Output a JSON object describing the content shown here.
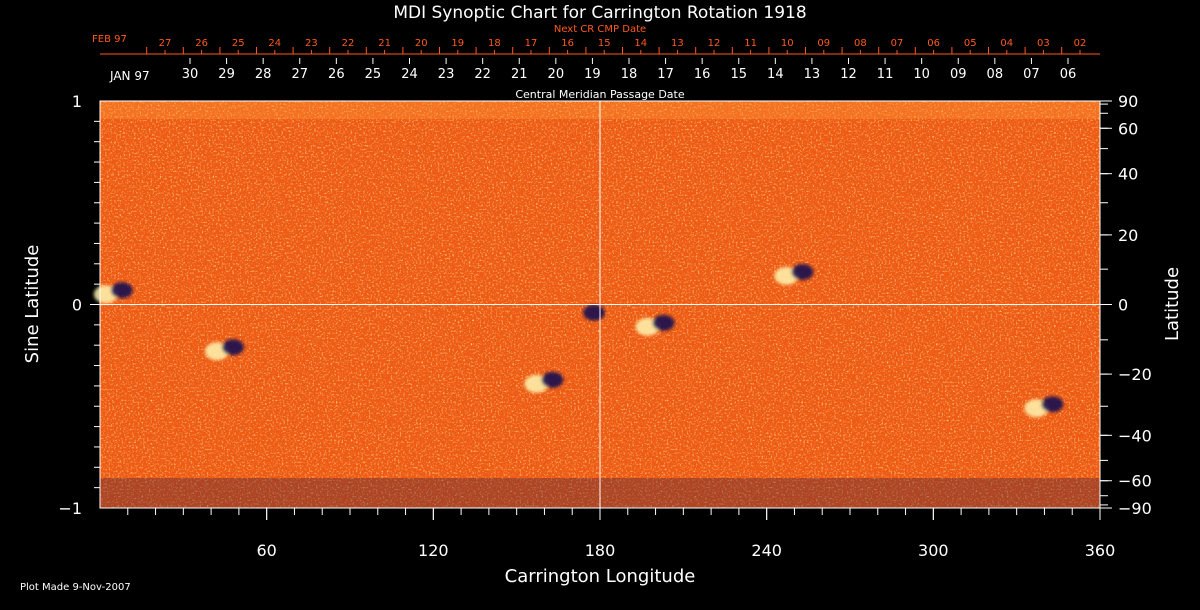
{
  "chart_data": {
    "type": "heatmap",
    "title": "MDI Synoptic Chart for Carrington Rotation 1918",
    "xlabel": "Carrington Longitude",
    "ylabel_left": "Sine Latitude",
    "ylabel_right": "Latitude",
    "xlim": [
      0,
      360
    ],
    "ylim": [
      -1,
      1
    ],
    "x_ticks": [
      60,
      120,
      180,
      240,
      300,
      360
    ],
    "y_ticks_left": [
      1,
      0,
      -1
    ],
    "y_ticks_left_labels": [
      "1",
      "0",
      "−1"
    ],
    "y_ticks_right": [
      90,
      60,
      40,
      20,
      0,
      -20,
      -40,
      -60,
      -90
    ],
    "y_ticks_right_labels": [
      "90",
      "60",
      "40",
      "20",
      "0",
      "−20",
      "−40",
      "−60",
      "−90"
    ],
    "top_axis": {
      "next_label": "Next CR CMP Date",
      "next_month": "FEB 97",
      "next_days": [
        "27",
        "26",
        "25",
        "24",
        "23",
        "22",
        "21",
        "20",
        "19",
        "18",
        "17",
        "16",
        "15",
        "14",
        "13",
        "12",
        "11",
        "10",
        "09",
        "08",
        "07",
        "06",
        "05",
        "04",
        "03",
        "02"
      ],
      "cmp_label": "Central Meridian Passage Date",
      "cmp_month": "JAN 97",
      "cmp_days": [
        "30",
        "29",
        "28",
        "27",
        "26",
        "25",
        "24",
        "23",
        "22",
        "21",
        "20",
        "19",
        "18",
        "17",
        "16",
        "15",
        "14",
        "13",
        "12",
        "11",
        "10",
        "09",
        "08",
        "07",
        "06"
      ]
    },
    "grid": true,
    "colors": {
      "background": "#000000",
      "field": "#f05a12",
      "positive_polarity": "#fff6b0",
      "negative_polarity": "#1a1050",
      "next_axis": "#ff5a1e",
      "axes": "#ffffff"
    },
    "features": [
      {
        "lon": 5,
        "sinlat": 0.06,
        "polarity": "bipole"
      },
      {
        "lon": 45,
        "sinlat": -0.22,
        "polarity": "bipole"
      },
      {
        "lon": 160,
        "sinlat": -0.38,
        "polarity": "bipole"
      },
      {
        "lon": 175,
        "sinlat": -0.05,
        "polarity": "negative"
      },
      {
        "lon": 200,
        "sinlat": -0.1,
        "polarity": "bipole"
      },
      {
        "lon": 250,
        "sinlat": 0.15,
        "polarity": "bipole"
      },
      {
        "lon": 340,
        "sinlat": -0.5,
        "polarity": "bipole"
      }
    ]
  },
  "footer": {
    "plot_made": "Plot Made  9-Nov-2007"
  }
}
